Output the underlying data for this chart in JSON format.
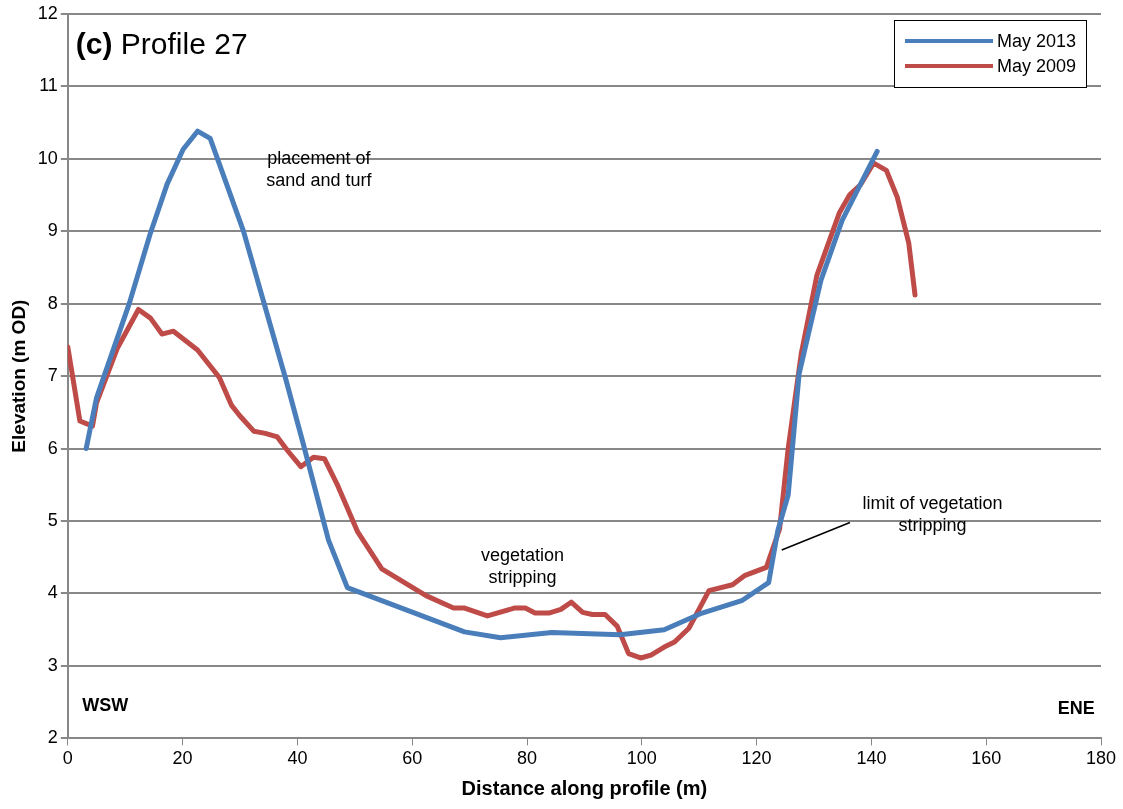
{
  "chart_data": {
    "type": "line",
    "title": "(c) Profile 27",
    "xlabel": "Distance along profile (m)",
    "ylabel": "Elevation (m OD)",
    "xlim": [
      0,
      180
    ],
    "xticks": [
      0,
      20,
      40,
      60,
      80,
      100,
      120,
      140,
      160,
      180
    ],
    "ylim": [
      2,
      12
    ],
    "yticks": [
      2,
      3,
      4,
      5,
      6,
      7,
      8,
      9,
      10,
      11,
      12
    ],
    "grid": "y",
    "legend": "top right",
    "marker": "none",
    "line_style": "solid",
    "series": [
      {
        "name": "May 2013",
        "color": "#4a7ebb",
        "x": [
          3.2,
          5,
          10.7,
          14.3,
          17.3,
          20.1,
          22.6,
          24.8,
          30.6,
          38,
          41,
          45.4,
          48.7,
          69.1,
          75.4,
          84.3,
          96.2,
          103.9,
          110.5,
          117.4,
          122.1,
          123.7,
          125.5,
          127.4,
          131.2,
          134.9,
          141
        ],
        "values": [
          6.0,
          6.7,
          8.0,
          8.95,
          9.65,
          10.13,
          10.38,
          10.28,
          9.0,
          6.95,
          6.07,
          4.74,
          4.08,
          3.47,
          3.39,
          3.46,
          3.43,
          3.5,
          3.73,
          3.9,
          4.15,
          4.87,
          5.36,
          7.03,
          8.32,
          9.15,
          10.1
        ]
      },
      {
        "name": "May 2009",
        "color": "#be4b48",
        "x": [
          0,
          2.1,
          4.3,
          5,
          8.6,
          12.3,
          14.4,
          16.4,
          18.4,
          22.6,
          26.4,
          28.5,
          30,
          32.4,
          34.4,
          36.5,
          38.3,
          40.6,
          42.8,
          44.7,
          46.9,
          50.5,
          54.7,
          62.4,
          67.2,
          69,
          73.1,
          77.9,
          79.7,
          81.4,
          83.8,
          85.9,
          87.7,
          89.7,
          91.4,
          93.6,
          95.7,
          97.7,
          99.8,
          101.6,
          103.9,
          105.7,
          108.2,
          111.7,
          115.8,
          118,
          121.7,
          124,
          125.5,
          127.8,
          130.5,
          134.4,
          136.2,
          138.1,
          140.4,
          142.6,
          144.5,
          146.5,
          147.6
        ],
        "values": [
          7.4,
          6.38,
          6.31,
          6.63,
          7.38,
          7.92,
          7.8,
          7.58,
          7.62,
          7.36,
          6.98,
          6.6,
          6.45,
          6.24,
          6.21,
          6.16,
          5.97,
          5.75,
          5.88,
          5.86,
          5.51,
          4.85,
          4.34,
          3.97,
          3.8,
          3.8,
          3.69,
          3.8,
          3.8,
          3.73,
          3.73,
          3.78,
          3.88,
          3.74,
          3.71,
          3.71,
          3.55,
          3.17,
          3.11,
          3.15,
          3.26,
          3.33,
          3.52,
          4.04,
          4.12,
          4.25,
          4.36,
          4.89,
          6.0,
          7.32,
          8.39,
          9.25,
          9.5,
          9.64,
          9.94,
          9.84,
          9.47,
          8.84,
          8.12
        ]
      }
    ],
    "annotations": [
      "placement of\nsand and turf",
      "vegetation\nstripping",
      "limit of vegetation\nstripping",
      "WSW",
      "ENE"
    ]
  }
}
